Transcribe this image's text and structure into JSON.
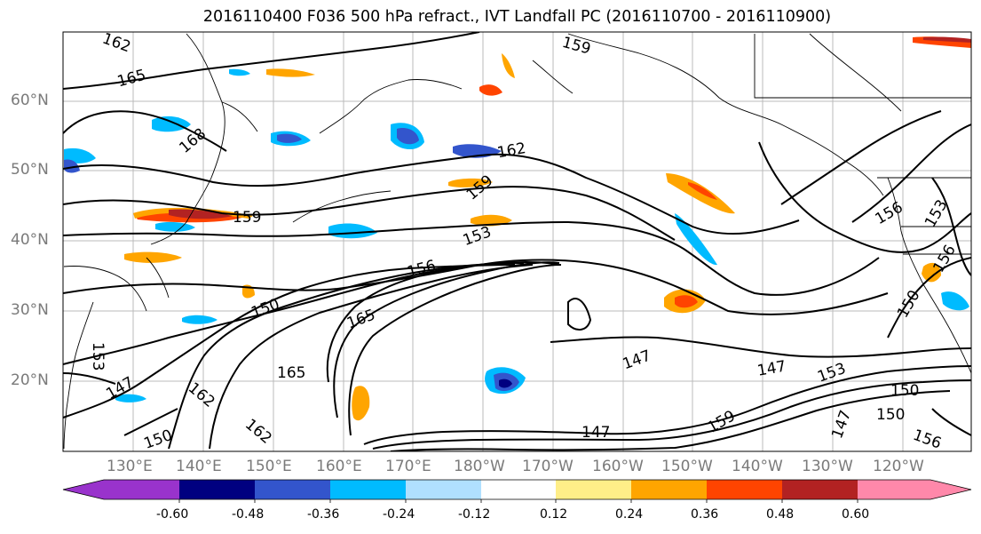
{
  "title": "2016110400 F036 500 hPa refract., IVT Landfall PC (2016110700 - 2016110900)",
  "lat_labels": [
    "60°N",
    "50°N",
    "40°N",
    "30°N",
    "20°N"
  ],
  "lon_labels": [
    "130°E",
    "140°E",
    "150°E",
    "160°E",
    "170°E",
    "180°W",
    "170°W",
    "160°W",
    "150°W",
    "140°W",
    "130°W",
    "120°W"
  ],
  "contour_labels": [
    "162",
    "165",
    "159",
    "168",
    "162",
    "159",
    "159",
    "153",
    "156",
    "153",
    "156",
    "150",
    "165",
    "150",
    "153",
    "147",
    "162",
    "165",
    "162",
    "150",
    "147",
    "147",
    "153",
    "150",
    "150",
    "147",
    "156",
    "159",
    "156",
    "147"
  ],
  "colorbar": {
    "tick_labels": [
      "-0.60",
      "-0.48",
      "-0.36",
      "-0.24",
      "-0.12",
      "0.12",
      "0.24",
      "0.36",
      "0.48",
      "0.60"
    ],
    "colors": [
      "#9933cc",
      "#000080",
      "#3355cc",
      "#00bbff",
      "#b0e0ff",
      "#ffffff",
      "#ffee88",
      "#ffa500",
      "#ff4400",
      "#b22222",
      "#ff88aa"
    ]
  },
  "colors": {
    "label_gray": "#7a7a7a",
    "grid": "#bbbbbb"
  }
}
